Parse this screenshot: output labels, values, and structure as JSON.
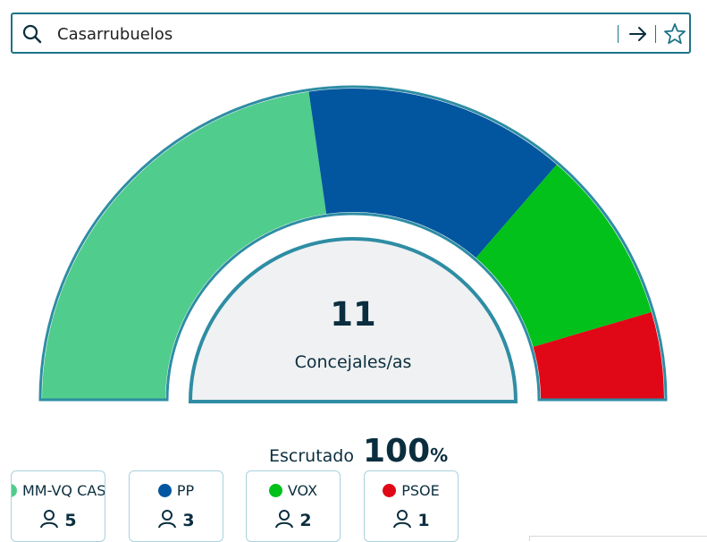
{
  "search": {
    "value": "Casarrubuelos",
    "icons": {
      "search": "search-icon",
      "go": "arrow-right-icon",
      "favorite": "star-icon"
    }
  },
  "chart_data": {
    "type": "pie",
    "subtype": "semicircle-parliament",
    "total_seats": 11,
    "center_value": "11",
    "center_label": "Concejales/as",
    "series": [
      {
        "name": "MM-VQ CAS...",
        "seats": 5,
        "color": "#50cc8c"
      },
      {
        "name": "PP",
        "seats": 3,
        "color": "#02559f"
      },
      {
        "name": "VOX",
        "seats": 2,
        "color": "#02c11b"
      },
      {
        "name": "PSOE",
        "seats": 1,
        "color": "#e00717"
      }
    ]
  },
  "scrutiny": {
    "label": "Escrutado",
    "value": "100",
    "unit": "%"
  },
  "legend": [
    {
      "name": "MM-VQ CAS...",
      "seats": "5",
      "color": "#50cc8c"
    },
    {
      "name": "PP",
      "seats": "3",
      "color": "#02559f"
    },
    {
      "name": "VOX",
      "seats": "2",
      "color": "#02c11b"
    },
    {
      "name": "PSOE",
      "seats": "1",
      "color": "#e00717"
    }
  ],
  "colors": {
    "accent": "#1d7487",
    "text": "#0b2e3f",
    "hub": "#f0f1f2"
  }
}
